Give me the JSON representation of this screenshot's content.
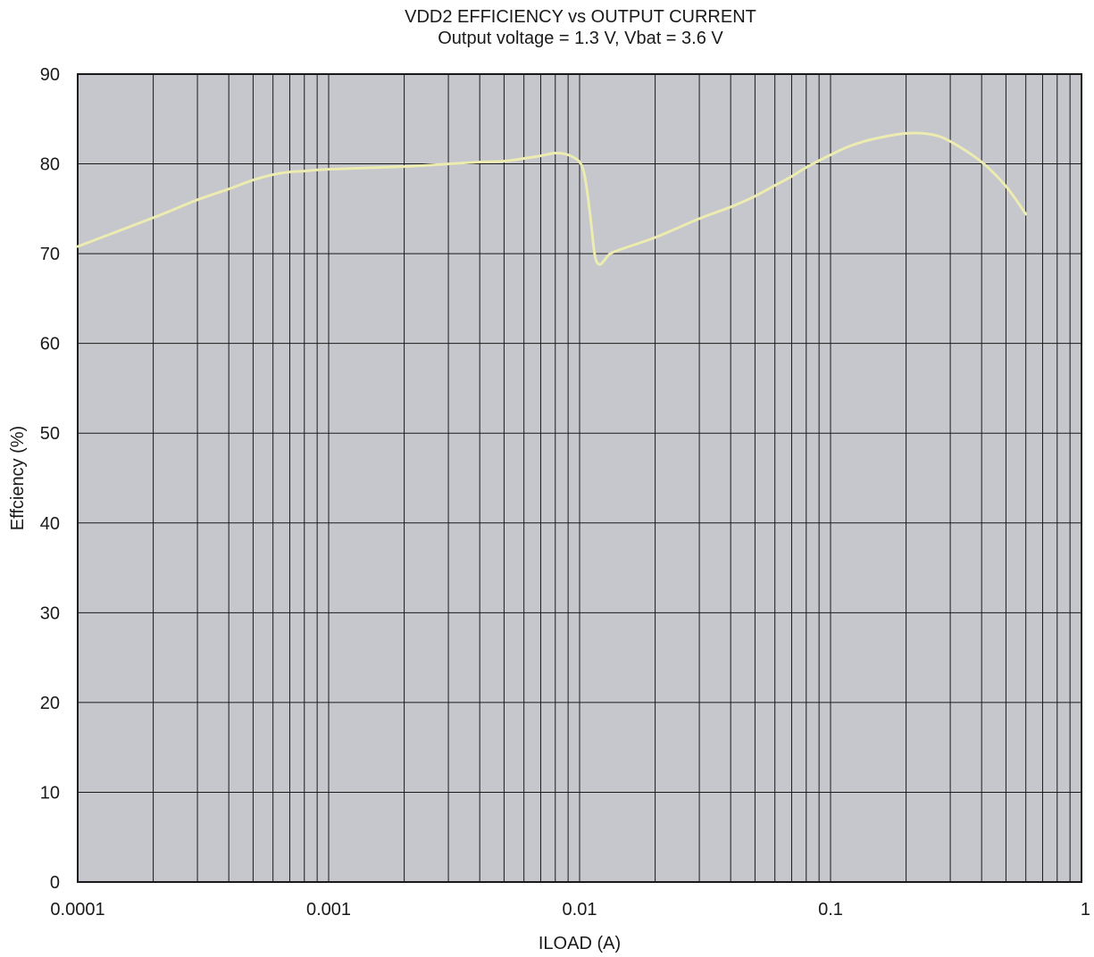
{
  "chart_data": {
    "type": "line",
    "title": "VDD2 EFFICIENCY vs OUTPUT CURRENT",
    "subtitle": "Output voltage = 1.3 V, Vbat = 3.6 V",
    "xlabel": "ILOAD (A)",
    "ylabel": "Effciency (%)",
    "xscale": "log",
    "xlim": [
      0.0001,
      1
    ],
    "ylim": [
      0,
      90
    ],
    "x_tick_labels": [
      "0.0001",
      "0.001",
      "0.01",
      "0.1",
      "1"
    ],
    "y_tick_labels": [
      "0",
      "10",
      "20",
      "30",
      "40",
      "50",
      "60",
      "70",
      "80",
      "90"
    ],
    "grid": true,
    "colors": {
      "plot_background": "#c5c7cc",
      "line": "#ecebb0",
      "grid": "#1a1a1a"
    },
    "series": [
      {
        "x": [
          0.0001,
          0.0002,
          0.0003,
          0.0004,
          0.0005,
          0.0006,
          0.0007,
          0.0008,
          0.001,
          0.002,
          0.003,
          0.004,
          0.005,
          0.006,
          0.007,
          0.008,
          0.009,
          0.01,
          0.0105,
          0.011,
          0.0115,
          0.012,
          0.0125,
          0.013,
          0.014,
          0.02,
          0.03,
          0.04,
          0.05,
          0.06,
          0.07,
          0.08,
          0.1,
          0.12,
          0.15,
          0.2,
          0.25,
          0.3,
          0.4,
          0.5,
          0.6
        ],
        "y": [
          70.8,
          74.0,
          76.0,
          77.2,
          78.2,
          78.8,
          79.1,
          79.2,
          79.4,
          79.7,
          80.0,
          80.2,
          80.3,
          80.6,
          80.9,
          81.2,
          81.0,
          80.2,
          78.5,
          74.5,
          69.8,
          68.8,
          69.2,
          69.8,
          70.3,
          71.8,
          73.9,
          75.2,
          76.4,
          77.6,
          78.6,
          79.6,
          81.0,
          82.0,
          82.8,
          83.4,
          83.3,
          82.5,
          80.2,
          77.5,
          74.4
        ]
      }
    ]
  }
}
